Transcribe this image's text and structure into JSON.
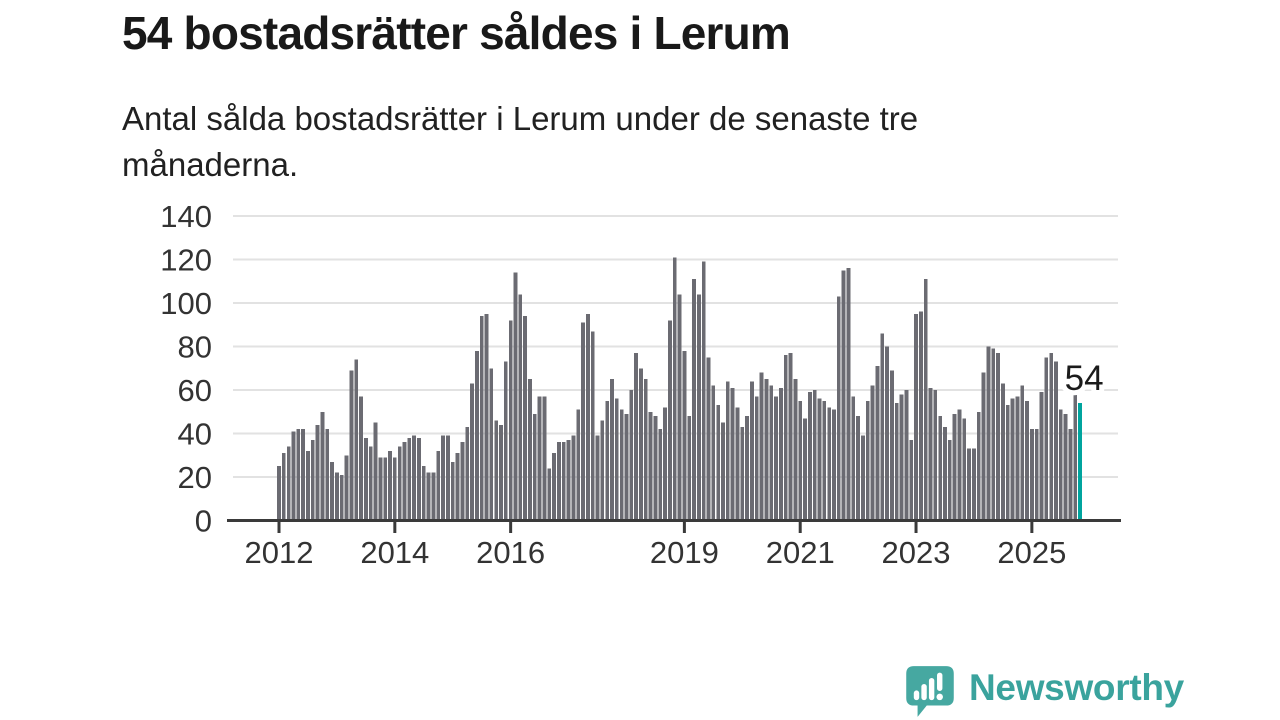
{
  "header": {
    "title": "54 bostadsrätter såldes i Lerum",
    "subtitle": "Antal sålda bostadsrätter i Lerum under de senaste tre månaderna.",
    "subtitle_lines": [
      "Antal sålda bostadsrätter i Lerum under de senaste tre",
      "månaderna."
    ]
  },
  "chart_data": {
    "type": "bar",
    "title": "54 bostadsrätter såldes i Lerum",
    "subtitle": "Antal sålda bostadsrätter i Lerum under de senaste tre månaderna.",
    "xlabel": "",
    "ylabel": "",
    "frequency": "monthly",
    "x_start": "2012-01",
    "x_end": "2025-11",
    "ylim": [
      0,
      145
    ],
    "grid": true,
    "yticks": [
      0,
      20,
      40,
      60,
      80,
      100,
      120,
      140
    ],
    "xticks": [
      {
        "label": "2012",
        "month_index": 0
      },
      {
        "label": "2014",
        "month_index": 24
      },
      {
        "label": "2016",
        "month_index": 48
      },
      {
        "label": "2019",
        "month_index": 84
      },
      {
        "label": "2021",
        "month_index": 108
      },
      {
        "label": "2023",
        "month_index": 132
      },
      {
        "label": "2025",
        "month_index": 156
      }
    ],
    "values": [
      25,
      31,
      34,
      41,
      42,
      42,
      32,
      37,
      44,
      50,
      42,
      27,
      22,
      21,
      30,
      69,
      74,
      57,
      38,
      34,
      45,
      29,
      29,
      32,
      29,
      34,
      36,
      38,
      39,
      38,
      25,
      22,
      22,
      32,
      39,
      39,
      27,
      31,
      36,
      43,
      63,
      78,
      94,
      95,
      70,
      46,
      44,
      73,
      92,
      114,
      104,
      94,
      65,
      49,
      57,
      57,
      24,
      31,
      36,
      36,
      37,
      39,
      51,
      91,
      95,
      87,
      39,
      46,
      55,
      65,
      56,
      51,
      49,
      60,
      77,
      70,
      65,
      50,
      48,
      42,
      52,
      92,
      121,
      104,
      78,
      48,
      111,
      104,
      119,
      75,
      62,
      53,
      45,
      64,
      61,
      52,
      43,
      48,
      64,
      57,
      68,
      65,
      62,
      57,
      61,
      76,
      77,
      65,
      55,
      47,
      59,
      60,
      56,
      55,
      52,
      51,
      103,
      115,
      116,
      57,
      48,
      39,
      55,
      62,
      71,
      86,
      80,
      69,
      54,
      58,
      60,
      37,
      95,
      96,
      111,
      61,
      60,
      48,
      43,
      37,
      49,
      51,
      47,
      33,
      33,
      50,
      68,
      80,
      79,
      77,
      63,
      53,
      56,
      57,
      62,
      55,
      42,
      42,
      59,
      75,
      77,
      73,
      51,
      49,
      42,
      58,
      54
    ],
    "annotation": "54",
    "highlight_value": 54,
    "bar_color": "#6b6b72",
    "highlight_color": "#00a49e",
    "grid_color": "#e2e2e2",
    "axis_color": "#3a3a3a",
    "axis_label_color": "#333333",
    "annotation_color": "#1b1b1b"
  },
  "footer": {
    "brand": "Newsworthy",
    "brand_color": "#3aa39d",
    "icon_color": "#46a8a1",
    "logo_icon": "bar-chart-speech-bubble-icon"
  }
}
